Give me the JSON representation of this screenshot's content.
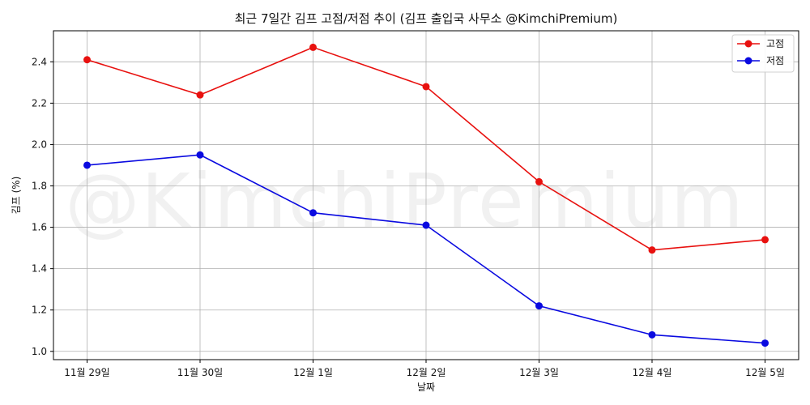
{
  "chart_data": {
    "type": "line",
    "title": "최근 7일간 김프 고점/저점 추이 (김프 출입국 사무소 @KimchiPremium)",
    "xlabel": "날짜",
    "ylabel": "김프 (%)",
    "categories": [
      "11월 29일",
      "11월 30일",
      "12월 1일",
      "12월 2일",
      "12월 3일",
      "12월 4일",
      "12월 5일"
    ],
    "series": [
      {
        "name": "고점",
        "color": "#e8110f",
        "values": [
          2.41,
          2.24,
          2.47,
          2.28,
          1.82,
          1.49,
          1.54
        ]
      },
      {
        "name": "저점",
        "color": "#0a0ae0",
        "values": [
          1.9,
          1.95,
          1.67,
          1.61,
          1.22,
          1.08,
          1.04
        ]
      }
    ],
    "ylim": [
      0.96,
      2.55
    ],
    "yticks": [
      "1.0",
      "1.2",
      "1.4",
      "1.6",
      "1.8",
      "2.0",
      "2.2",
      "2.4"
    ],
    "grid": true,
    "legend_position": "top-right",
    "watermark": "@KimchiPremium"
  }
}
